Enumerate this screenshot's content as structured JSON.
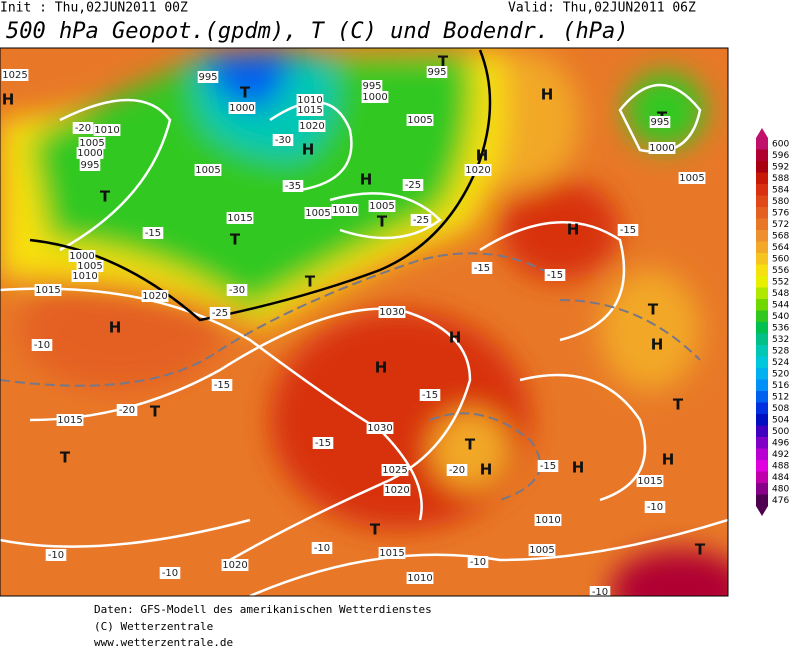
{
  "header": {
    "init": "Init : Thu,02JUN2011 00Z",
    "valid": "Valid: Thu,02JUN2011 06Z",
    "title": "500 hPa Geopot.(gpdm), T (C) und Bodendr. (hPa)"
  },
  "scale": [
    {
      "value": 600,
      "color": "#c0106a"
    },
    {
      "value": 596,
      "color": "#b00030"
    },
    {
      "value": 592,
      "color": "#a80010"
    },
    {
      "value": 588,
      "color": "#c81808"
    },
    {
      "value": 584,
      "color": "#d83010"
    },
    {
      "value": 580,
      "color": "#e04818"
    },
    {
      "value": 576,
      "color": "#e46020"
    },
    {
      "value": 572,
      "color": "#e87828"
    },
    {
      "value": 568,
      "color": "#ee9030"
    },
    {
      "value": 564,
      "color": "#f2a828"
    },
    {
      "value": 560,
      "color": "#f6c420"
    },
    {
      "value": 556,
      "color": "#f8e010"
    },
    {
      "value": 552,
      "color": "#e8f000"
    },
    {
      "value": 548,
      "color": "#b0e800"
    },
    {
      "value": 544,
      "color": "#70d800"
    },
    {
      "value": 540,
      "color": "#30c820"
    },
    {
      "value": 536,
      "color": "#00c050"
    },
    {
      "value": 532,
      "color": "#00c088"
    },
    {
      "value": 528,
      "color": "#00c8b4"
    },
    {
      "value": 524,
      "color": "#00c8dc"
    },
    {
      "value": 520,
      "color": "#00b0f0"
    },
    {
      "value": 516,
      "color": "#0090f8"
    },
    {
      "value": 512,
      "color": "#0060f0"
    },
    {
      "value": 508,
      "color": "#0030e0"
    },
    {
      "value": 504,
      "color": "#0010c0"
    },
    {
      "value": 500,
      "color": "#4000c0"
    },
    {
      "value": 496,
      "color": "#8000c8"
    },
    {
      "value": 492,
      "color": "#b800d0"
    },
    {
      "value": 488,
      "color": "#e000e0"
    },
    {
      "value": 484,
      "color": "#c000a8"
    },
    {
      "value": 480,
      "color": "#880088"
    },
    {
      "value": 476,
      "color": "#500050"
    }
  ],
  "map_labels": [
    "1025",
    "H",
    "995",
    "T",
    "1000",
    "1010",
    "1015",
    "1020",
    "995",
    "1000",
    "T",
    "995",
    "1005",
    "H",
    "-30",
    "-35",
    "H",
    "-25",
    "H",
    "T",
    "995",
    "1000",
    "1005",
    "H",
    "1020",
    "T",
    "1010",
    "1005",
    "1000",
    "995",
    "-20",
    "1005",
    "1015",
    "T",
    "1005",
    "1010",
    "1005",
    "T",
    "-25",
    "-15",
    "1000",
    "1005",
    "1010",
    "1015",
    "1020",
    "-30",
    "-25",
    "T",
    "H",
    "H",
    "-15",
    "-15",
    "-15",
    "1030",
    "H",
    "H",
    "-10",
    "-15",
    "-20",
    "T",
    "1015",
    "T",
    "1030",
    "-15",
    "-15",
    "T",
    "-20",
    "H",
    "1025",
    "1020",
    "H",
    "-15",
    "T",
    "H",
    "T",
    "H",
    "1015",
    "-10",
    "-10",
    "1020",
    "-10",
    "1015",
    "T",
    "1010",
    "-10",
    "1010",
    "1005",
    "T",
    "-10",
    "-10"
  ],
  "footer": [
    "Daten: GFS-Modell des amerikanischen Wetterdienstes",
    "(C) Wetterzentrale",
    "www.wetterzentrale.de"
  ]
}
